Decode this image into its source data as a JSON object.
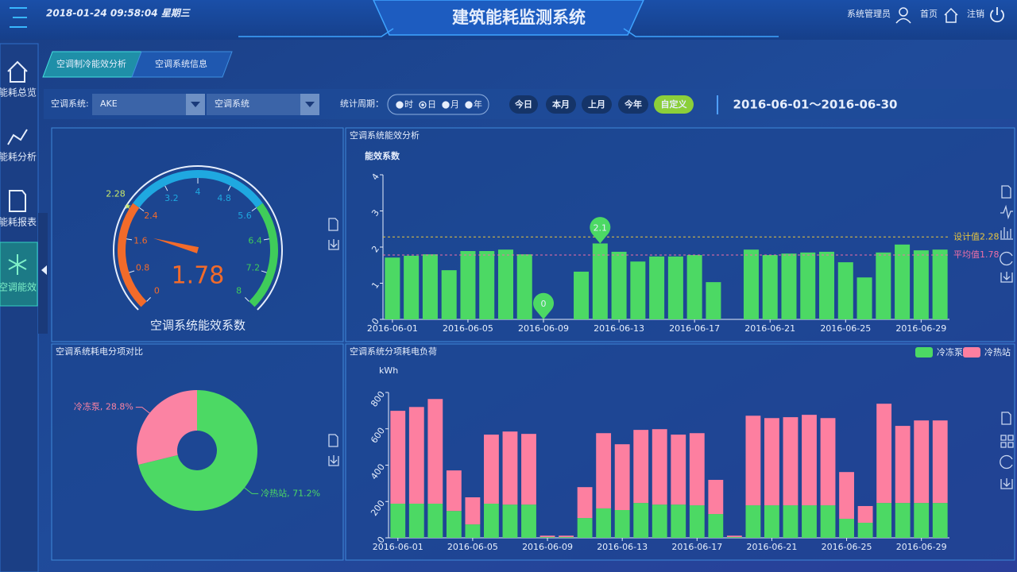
{
  "header": {
    "datetime": "2018-01-24 09:58:04 星期三",
    "title": "建筑能耗监测系统",
    "user": "系统管理员",
    "home": "首页",
    "logout": "注销"
  },
  "sidebar": {
    "items": [
      "能耗总览",
      "能耗分析",
      "能耗报表",
      "空调能效"
    ]
  },
  "tabs": [
    "空调制冷能效分析",
    "空调系统信息"
  ],
  "filters": {
    "system_label": "空调系统:",
    "system_value": "AKE",
    "subsystem_value": "空调系统",
    "period_label": "统计周期：",
    "period_options": [
      "时",
      "日",
      "月",
      "年"
    ],
    "period_buttons": [
      "今日",
      "本月",
      "上月",
      "今年",
      "自定义"
    ],
    "date_range": "2016-06-01～2016-06-30"
  },
  "gauge": {
    "type": "gauge",
    "title": "空调系统能效系数",
    "value": 1.78,
    "lim": [
      0,
      8
    ],
    "ticks": [
      0,
      0.8,
      1.6,
      2.4,
      3.2,
      4,
      4.8,
      5.6,
      6.4,
      7.2,
      8
    ],
    "design_value": 2.28,
    "bands": [
      {
        "to": 2.4,
        "color": "#f26b2a"
      },
      {
        "to": 5.6,
        "color": "#1fa8e0"
      },
      {
        "to": 8,
        "color": "#3fcc5a"
      }
    ],
    "value_color": "#f26b2a"
  },
  "efficiency_chart": {
    "type": "bar",
    "title": "空调系统能效分析",
    "ylabel": "能效系数",
    "categories": [
      "2016-06-01",
      null,
      null,
      null,
      "2016-06-05",
      null,
      null,
      null,
      "2016-06-09",
      null,
      null,
      null,
      "2016-06-13",
      null,
      null,
      null,
      "2016-06-17",
      null,
      null,
      null,
      "2016-06-21",
      null,
      null,
      null,
      "2016-06-25",
      null,
      null,
      null,
      "2016-06-29",
      null
    ],
    "values": [
      1.71,
      1.76,
      1.8,
      1.36,
      1.89,
      1.89,
      1.93,
      1.8,
      0,
      0,
      1.32,
      2.1,
      1.87,
      1.6,
      1.74,
      1.74,
      1.78,
      1.03,
      0,
      1.93,
      1.78,
      1.82,
      1.85,
      1.87,
      1.58,
      1.16,
      1.85,
      2.07,
      1.91,
      1.93
    ],
    "color": "#4cd964",
    "ylim": [
      0,
      4
    ],
    "yticks": [
      0,
      1,
      2,
      3,
      4
    ],
    "reference_lines": [
      {
        "label": "设计值2.28",
        "value": 2.28,
        "color": "#e8c640"
      },
      {
        "label": "平均值1.78",
        "value": 1.78,
        "color": "#ee6fa6"
      }
    ]
  },
  "pie_chart": {
    "type": "pie",
    "title": "空调系统耗电分项对比",
    "values": [
      71.2,
      28.8
    ],
    "value_labels": [
      "冷热站, 71.2%",
      "冷冻泵, 28.8%"
    ],
    "colors": [
      "#4cd964",
      "#fb83a3"
    ]
  },
  "load_chart": {
    "type": "stacked_bar",
    "title": "空调系统分项耗电负荷",
    "ylabel": "kWh",
    "categories": [
      "2016-06-01",
      null,
      null,
      null,
      "2016-06-05",
      null,
      null,
      null,
      "2016-06-09",
      null,
      null,
      null,
      "2016-06-13",
      null,
      null,
      null,
      "2016-06-17",
      null,
      null,
      null,
      "2016-06-21",
      null,
      null,
      null,
      "2016-06-25",
      null,
      null,
      null,
      "2016-06-29",
      null
    ],
    "series": [
      {
        "name": "冷冻泵",
        "color": "#4cd964",
        "values": [
          188,
          188,
          188,
          148,
          74,
          188,
          183,
          183,
          4,
          4,
          109,
          162,
          153,
          192,
          183,
          183,
          179,
          131,
          4,
          179,
          179,
          179,
          179,
          179,
          105,
          83,
          192,
          192,
          192,
          192
        ]
      },
      {
        "name": "冷热站",
        "color": "#fd7fa0",
        "values": [
          511,
          532,
          576,
          223,
          149,
          380,
          402,
          389,
          8,
          8,
          170,
          414,
          362,
          402,
          415,
          385,
          397,
          188,
          8,
          493,
          480,
          485,
          498,
          480,
          257,
          92,
          546,
          424,
          454,
          454
        ]
      }
    ],
    "ylim": [
      0,
      800
    ],
    "yticks": [
      0,
      200,
      400,
      600,
      800
    ],
    "legend": "top-right"
  }
}
